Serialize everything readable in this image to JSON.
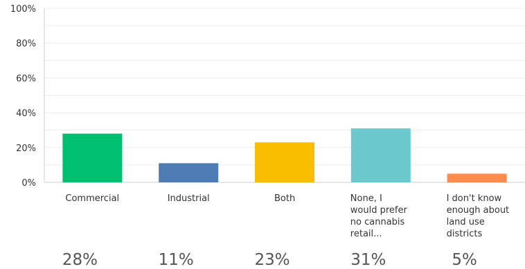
{
  "chart_data": {
    "type": "bar",
    "categories": [
      "Commercial",
      "Industrial",
      "Both",
      "None, I would prefer no cannabis retail...",
      "I don't know enough about land use districts"
    ],
    "category_label_lines": [
      [
        "Commercial"
      ],
      [
        "Industrial"
      ],
      [
        "Both"
      ],
      [
        "None, I",
        "would prefer",
        "no cannabis",
        "retail..."
      ],
      [
        "I don't know",
        "enough about",
        "land use",
        "districts"
      ]
    ],
    "values": [
      28,
      11,
      23,
      31,
      5
    ],
    "value_labels": [
      "28%",
      "11%",
      "23%",
      "31%",
      "5%"
    ],
    "colors": [
      "#00bf6f",
      "#507cb6",
      "#f9be00",
      "#6bc8cd",
      "#ff8b4f"
    ],
    "yticks": [
      "0%",
      "20%",
      "40%",
      "60%",
      "80%",
      "100%"
    ],
    "ylim": [
      0,
      100
    ],
    "grid": true
  }
}
